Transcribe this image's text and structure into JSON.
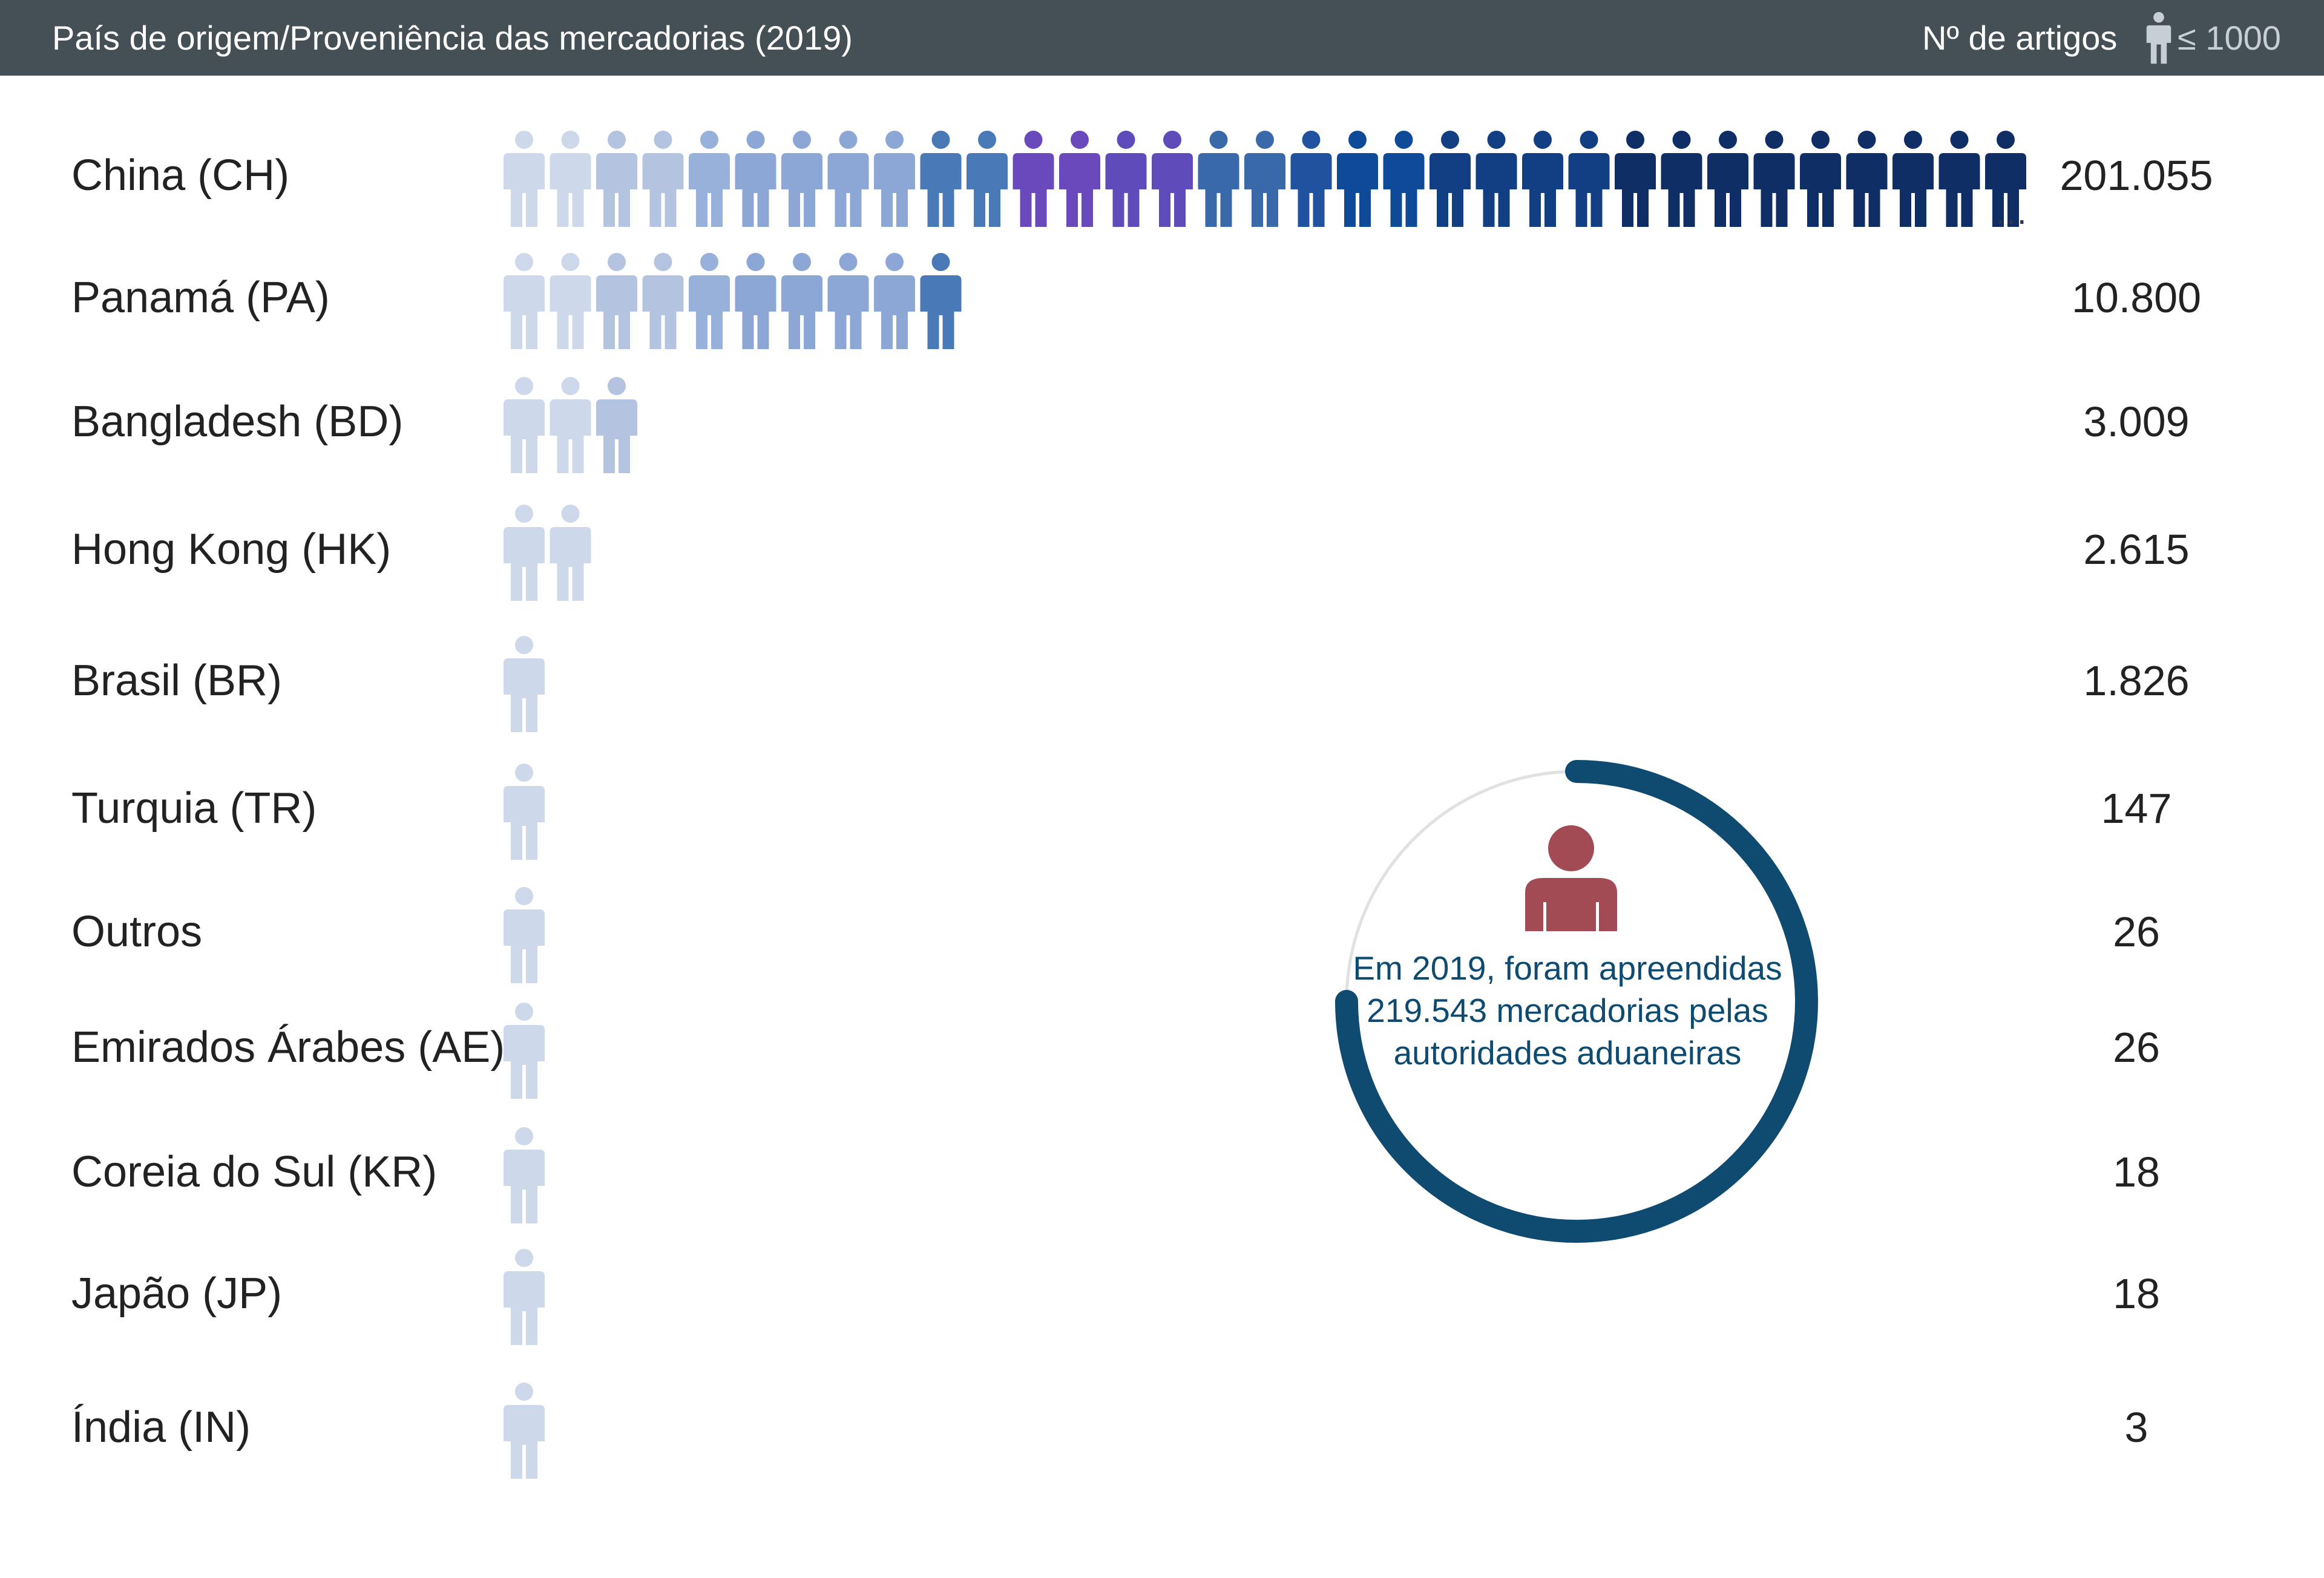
{
  "header": {
    "title": "País de origem/Proveniência das mercadorias (2019)",
    "count_label": "Nº de artigos",
    "legend_value": "≤ 1000"
  },
  "summary": {
    "text": "Em 2019, foram apreendidas 219.543 mercadorias pelas autoridades aduaneiras"
  },
  "colors": {
    "header_bg": "#454f56",
    "ring": "#0f4a70",
    "ring_track": "#dfe1e3",
    "summary_icon": "#a34b55",
    "icon_scale": [
      "#cdd8ea",
      "#cdd8ea",
      "#b3c3e0",
      "#b3c3e0",
      "#97b1da",
      "#8ca6d5",
      "#8ca6d5",
      "#8ca6d5",
      "#8ca6d5",
      "#4a79b7",
      "#4a79b7",
      "#6a49bd",
      "#6a49bd",
      "#5f4cba",
      "#5f4cba",
      "#3a69aa",
      "#3a69aa",
      "#2052a0",
      "#0f4a99",
      "#0f4a99",
      "#123e84",
      "#123e84",
      "#123e84",
      "#123e84",
      "#102e66",
      "#102e66",
      "#102e66",
      "#102e66",
      "#102e66",
      "#102e66",
      "#102e66",
      "#102e66",
      "#102e66"
    ]
  },
  "chart_data": {
    "type": "pictogram",
    "unit_per_icon": "≤ 1000",
    "categories": [
      "China (CH)",
      "Panamá (PA)",
      "Bangladesh (BD)",
      "Hong Kong (HK)",
      "Brasil (BR)",
      "Turquia (TR)",
      "Outros",
      "Emirados Árabes (AE)",
      "Coreia do Sul (KR)",
      "Japão (JP)",
      "Índia (IN)"
    ],
    "values": [
      201055,
      10800,
      3009,
      2615,
      1826,
      147,
      26,
      26,
      18,
      18,
      3
    ],
    "value_labels": [
      "201.055",
      "10.800",
      "3.009",
      "2.615",
      "1.826",
      "147",
      "26",
      "26",
      "18",
      "18",
      "3"
    ],
    "icons_shown": [
      33,
      10,
      3,
      2,
      1,
      1,
      1,
      1,
      1,
      1,
      1
    ],
    "truncated": [
      true,
      false,
      false,
      false,
      false,
      false,
      false,
      false,
      false,
      false,
      false
    ],
    "total": 219543
  }
}
